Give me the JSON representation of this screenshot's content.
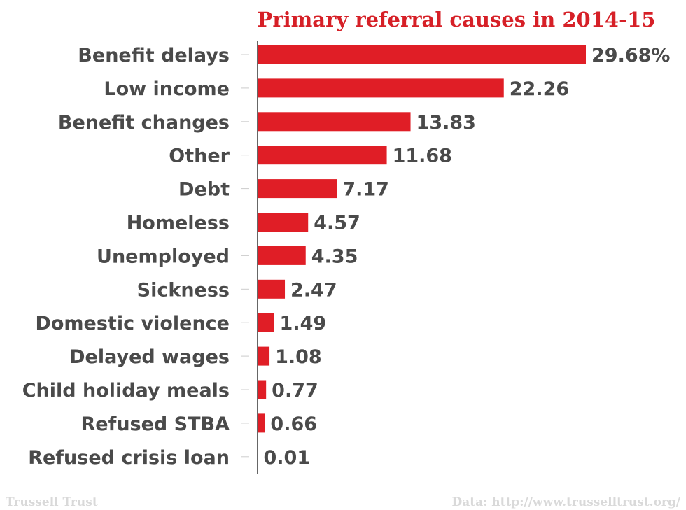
{
  "chart_data": {
    "type": "bar",
    "orientation": "horizontal",
    "title": "Primary referral causes in 2014-15",
    "categories": [
      "Benefit delays",
      "Low income",
      "Benefit changes",
      "Other",
      "Debt",
      "Homeless",
      "Unemployed",
      "Sickness",
      "Domestic violence",
      "Delayed wages",
      "Child holiday meals",
      "Refused STBA",
      "Refused crisis loan"
    ],
    "values": [
      29.68,
      22.26,
      13.83,
      11.68,
      7.17,
      4.57,
      4.35,
      2.47,
      1.49,
      1.08,
      0.77,
      0.66,
      0.01
    ],
    "value_labels": [
      "29.68%",
      "22.26",
      "13.83",
      "11.68",
      "7.17",
      "4.57",
      "4.35",
      "2.47",
      "1.49",
      "1.08",
      "0.77",
      "0.66",
      "0.01"
    ],
    "xlim": [
      0,
      29.68
    ],
    "grid": false,
    "colors": {
      "bar": "#e01e26",
      "title": "#d62027",
      "labels": "#4a4a4a",
      "axis": "#333333",
      "footer": "#d9d9d9"
    }
  },
  "footer": {
    "source_left": "Trussell Trust",
    "source_right": "Data: http://www.trusselltrust.org/"
  }
}
